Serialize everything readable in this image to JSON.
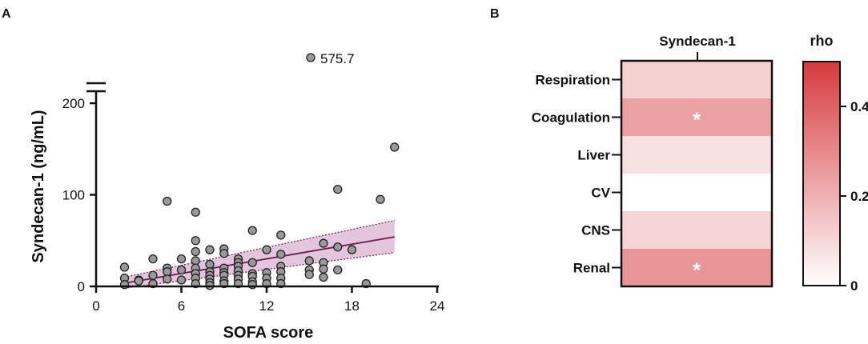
{
  "chart_data": [
    {
      "panel": "A",
      "type": "scatter",
      "xlabel": "SOFA score",
      "ylabel": "Syndecan-1 (ng/mL)",
      "xlim": [
        0,
        24
      ],
      "xticks": [
        0,
        6,
        12,
        18,
        24
      ],
      "ylim": [
        0,
        210
      ],
      "yticks": [
        0,
        100,
        200
      ],
      "axis_break": true,
      "outlier": {
        "x": 15,
        "y": 575.7,
        "label": "575.7"
      },
      "points": [
        [
          2,
          21
        ],
        [
          2,
          9
        ],
        [
          2,
          2
        ],
        [
          3,
          7
        ],
        [
          3,
          6
        ],
        [
          4,
          30
        ],
        [
          4,
          12
        ],
        [
          4,
          3
        ],
        [
          5,
          93
        ],
        [
          5,
          20
        ],
        [
          5,
          16
        ],
        [
          5,
          8
        ],
        [
          6,
          30
        ],
        [
          6,
          18
        ],
        [
          6,
          7
        ],
        [
          7,
          81
        ],
        [
          7,
          50
        ],
        [
          7,
          38
        ],
        [
          7,
          28
        ],
        [
          7,
          20
        ],
        [
          7,
          14
        ],
        [
          7,
          9
        ],
        [
          7,
          3
        ],
        [
          8,
          40
        ],
        [
          8,
          24
        ],
        [
          8,
          16
        ],
        [
          8,
          12
        ],
        [
          8,
          8
        ],
        [
          8,
          4
        ],
        [
          8,
          1
        ],
        [
          9,
          41
        ],
        [
          9,
          36
        ],
        [
          9,
          20
        ],
        [
          9,
          15
        ],
        [
          9,
          12
        ],
        [
          9,
          6
        ],
        [
          9,
          3
        ],
        [
          10,
          30
        ],
        [
          10,
          26
        ],
        [
          10,
          22
        ],
        [
          10,
          17
        ],
        [
          10,
          12
        ],
        [
          10,
          8
        ],
        [
          10,
          3
        ],
        [
          11,
          61
        ],
        [
          11,
          26
        ],
        [
          11,
          14
        ],
        [
          11,
          11
        ],
        [
          11,
          5
        ],
        [
          11,
          2
        ],
        [
          12,
          40
        ],
        [
          12,
          15
        ],
        [
          12,
          9
        ],
        [
          12,
          3
        ],
        [
          13,
          56
        ],
        [
          13,
          35
        ],
        [
          13,
          22
        ],
        [
          13,
          16
        ],
        [
          13,
          9
        ],
        [
          13,
          3
        ],
        [
          15,
          28
        ],
        [
          15,
          18
        ],
        [
          15,
          13
        ],
        [
          16,
          47
        ],
        [
          16,
          26
        ],
        [
          16,
          19
        ],
        [
          16,
          10
        ],
        [
          17,
          106
        ],
        [
          17,
          43
        ],
        [
          17,
          18
        ],
        [
          18,
          40
        ],
        [
          19,
          3
        ],
        [
          20,
          95
        ],
        [
          21,
          152
        ]
      ],
      "regression": {
        "x": [
          2,
          21
        ],
        "y": [
          3.5,
          54
        ]
      },
      "ci_upper": {
        "x": [
          2,
          21
        ],
        "y": [
          10,
          72
        ]
      },
      "ci_lower": {
        "x": [
          2,
          21
        ],
        "y": [
          -2,
          37
        ]
      },
      "colors": {
        "point_fill": "#999999",
        "line": "#6e1a4a",
        "band": "#d9b1d3",
        "band_edge": "#7a2a5c"
      }
    },
    {
      "panel": "B",
      "type": "heatmap",
      "column": "Syndecan-1",
      "rows": [
        "Respiration",
        "Coagulation",
        "Liver",
        "CV",
        "CNS",
        "Renal"
      ],
      "values": [
        0.12,
        0.24,
        0.08,
        0.0,
        0.11,
        0.27
      ],
      "significant": [
        false,
        true,
        false,
        false,
        false,
        true
      ],
      "sig_mark": "*",
      "colorbar": {
        "title": "rho",
        "min": 0,
        "max": 0.5,
        "ticks": [
          0,
          0.2,
          0.4
        ]
      },
      "colors": {
        "low": "#ffffff",
        "high": "#d63a3e"
      }
    }
  ],
  "labels": {
    "panel_a": "A",
    "panel_b": "B"
  }
}
